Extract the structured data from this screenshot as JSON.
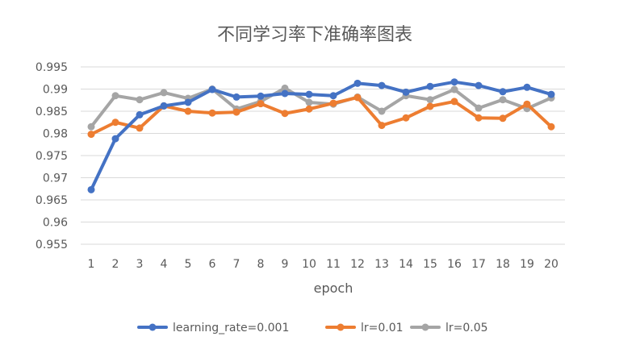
{
  "chart_data": {
    "type": "line",
    "title": "不同学习率下准确率图表",
    "xlabel": "epoch",
    "ylabel": "",
    "x": [
      1,
      2,
      3,
      4,
      5,
      6,
      7,
      8,
      9,
      10,
      11,
      12,
      13,
      14,
      15,
      16,
      17,
      18,
      19,
      20
    ],
    "ylim": [
      0.955,
      0.995
    ],
    "y_ticks": [
      "0.955",
      "0.96",
      "0.965",
      "0.97",
      "0.975",
      "0.98",
      "0.985",
      "0.99",
      "0.995"
    ],
    "grid": true,
    "legend_position": "bottom",
    "series": [
      {
        "name": "learning_rate=0.001",
        "color": "#4472C4",
        "values": [
          0.9673,
          0.9788,
          0.9842,
          0.9862,
          0.987,
          0.9899,
          0.9882,
          0.9884,
          0.989,
          0.9888,
          0.9885,
          0.9913,
          0.9908,
          0.9893,
          0.9906,
          0.9916,
          0.9908,
          0.9894,
          0.9904,
          0.9888
        ]
      },
      {
        "name": "lr=0.01",
        "color": "#ED7D31",
        "values": [
          0.9798,
          0.9825,
          0.9812,
          0.9862,
          0.985,
          0.9846,
          0.9848,
          0.9867,
          0.9845,
          0.9855,
          0.9868,
          0.9881,
          0.9818,
          0.9835,
          0.9861,
          0.9872,
          0.9835,
          0.9834,
          0.9866,
          0.9815
        ]
      },
      {
        "name": "lr=0.05",
        "color": "#A5A5A5",
        "values": [
          0.9815,
          0.9885,
          0.9876,
          0.9892,
          0.9879,
          0.99,
          0.9855,
          0.9872,
          0.9902,
          0.987,
          0.9866,
          0.9882,
          0.985,
          0.9885,
          0.9876,
          0.9899,
          0.9857,
          0.9876,
          0.9856,
          0.988
        ]
      }
    ]
  }
}
